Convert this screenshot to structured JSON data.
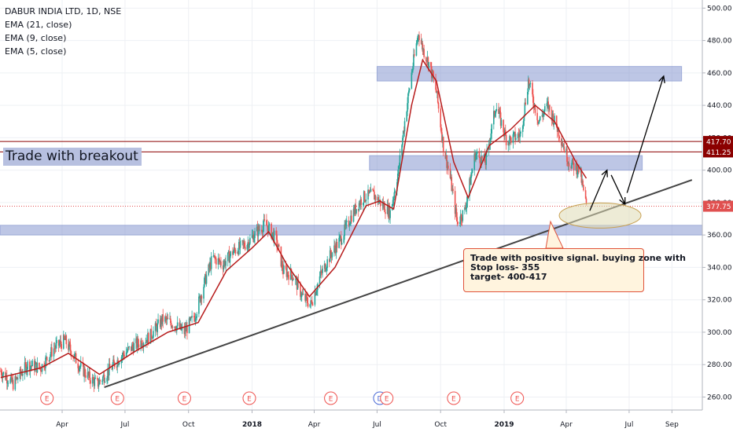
{
  "chart_data": {
    "type": "candlestick",
    "title": "DABUR INDIA LTD, 1D, NSE",
    "indicators": [
      "EMA (21, close)",
      "EMA (9, close)",
      "EMA (5, close)"
    ],
    "y_ticks": [
      500,
      480,
      460,
      440,
      420,
      400,
      380,
      360,
      340,
      320,
      300,
      280,
      260
    ],
    "y_tick_labels": [
      "500.00",
      "480.00",
      "460.00",
      "440.00",
      "420.00",
      "400.00",
      "380.00",
      "360.00",
      "340.00",
      "320.00",
      "300.00",
      "280.00",
      "260.00"
    ],
    "ylim": [
      252,
      505
    ],
    "x_tick_labels": [
      "Apr",
      "Jul",
      "Oct",
      "2018",
      "Apr",
      "Jul",
      "Oct",
      "2019",
      "Apr",
      "Jul",
      "Sep"
    ],
    "x_tick_dates": [
      "2017-04-01",
      "2017-07-01",
      "2017-10-01",
      "2018-01-01",
      "2018-04-01",
      "2018-07-01",
      "2018-10-01",
      "2019-01-01",
      "2019-04-01",
      "2019-07-01",
      "2019-09-01"
    ],
    "xlim": [
      "2017-01-01",
      "2019-10-15"
    ],
    "close_path": [
      [
        "2017-01-02",
        276
      ],
      [
        "2017-01-20",
        268
      ],
      [
        "2017-02-10",
        280
      ],
      [
        "2017-03-01",
        278
      ],
      [
        "2017-03-20",
        290
      ],
      [
        "2017-04-05",
        295
      ],
      [
        "2017-04-25",
        280
      ],
      [
        "2017-05-10",
        272
      ],
      [
        "2017-05-22",
        268
      ],
      [
        "2017-06-05",
        275
      ],
      [
        "2017-06-25",
        285
      ],
      [
        "2017-07-15",
        292
      ],
      [
        "2017-08-05",
        297
      ],
      [
        "2017-08-25",
        308
      ],
      [
        "2017-09-10",
        305
      ],
      [
        "2017-09-25",
        300
      ],
      [
        "2017-10-10",
        310
      ],
      [
        "2017-10-25",
        332
      ],
      [
        "2017-11-05",
        346
      ],
      [
        "2017-11-20",
        342
      ],
      [
        "2017-12-05",
        350
      ],
      [
        "2017-12-25",
        355
      ],
      [
        "2018-01-10",
        363
      ],
      [
        "2018-01-20",
        367
      ],
      [
        "2018-02-05",
        357
      ],
      [
        "2018-02-15",
        338
      ],
      [
        "2018-03-01",
        335
      ],
      [
        "2018-03-15",
        322
      ],
      [
        "2018-03-27",
        317
      ],
      [
        "2018-04-10",
        335
      ],
      [
        "2018-04-25",
        348
      ],
      [
        "2018-05-10",
        358
      ],
      [
        "2018-05-25",
        372
      ],
      [
        "2018-06-10",
        383
      ],
      [
        "2018-06-25",
        385
      ],
      [
        "2018-07-10",
        378
      ],
      [
        "2018-07-20",
        374
      ],
      [
        "2018-08-01",
        400
      ],
      [
        "2018-08-10",
        430
      ],
      [
        "2018-08-20",
        460
      ],
      [
        "2018-08-30",
        485
      ],
      [
        "2018-09-05",
        475
      ],
      [
        "2018-09-15",
        465
      ],
      [
        "2018-09-25",
        448
      ],
      [
        "2018-10-05",
        415
      ],
      [
        "2018-10-15",
        395
      ],
      [
        "2018-10-25",
        368
      ],
      [
        "2018-11-05",
        375
      ],
      [
        "2018-11-20",
        410
      ],
      [
        "2018-12-05",
        405
      ],
      [
        "2018-12-20",
        440
      ],
      [
        "2019-01-05",
        418
      ],
      [
        "2019-01-25",
        422
      ],
      [
        "2019-02-05",
        455
      ],
      [
        "2019-02-20",
        430
      ],
      [
        "2019-03-05",
        440
      ],
      [
        "2019-03-20",
        425
      ],
      [
        "2019-04-05",
        405
      ],
      [
        "2019-04-20",
        400
      ],
      [
        "2019-04-30",
        378
      ]
    ],
    "ema_path": [
      [
        "2017-01-02",
        272
      ],
      [
        "2017-03-01",
        278
      ],
      [
        "2017-04-10",
        287
      ],
      [
        "2017-05-25",
        274
      ],
      [
        "2017-07-15",
        288
      ],
      [
        "2017-09-01",
        300
      ],
      [
        "2017-10-15",
        306
      ],
      [
        "2017-11-25",
        338
      ],
      [
        "2018-01-01",
        352
      ],
      [
        "2018-01-25",
        362
      ],
      [
        "2018-02-20",
        342
      ],
      [
        "2018-03-25",
        322
      ],
      [
        "2018-05-01",
        340
      ],
      [
        "2018-06-15",
        378
      ],
      [
        "2018-07-05",
        381
      ],
      [
        "2018-07-25",
        376
      ],
      [
        "2018-08-20",
        440
      ],
      [
        "2018-09-05",
        468
      ],
      [
        "2018-09-25",
        455
      ],
      [
        "2018-10-20",
        405
      ],
      [
        "2018-11-10",
        383
      ],
      [
        "2018-12-10",
        415
      ],
      [
        "2019-01-10",
        425
      ],
      [
        "2019-02-15",
        440
      ],
      [
        "2019-03-15",
        430
      ],
      [
        "2019-04-15",
        405
      ],
      [
        "2019-04-30",
        395
      ]
    ],
    "horizontal_lines": [
      {
        "value": 417.7,
        "label": "417.70"
      },
      {
        "value": 411.25,
        "label": "411.25"
      }
    ],
    "last_price": {
      "value": 377.75,
      "label": "377.75"
    },
    "zones": [
      {
        "from_date": "2018-07-01",
        "to_date": "2019-09-15",
        "low": 455,
        "high": 464
      },
      {
        "from_date": "2018-06-20",
        "to_date": "2019-07-20",
        "low": 400,
        "high": 409
      },
      {
        "from_date": "2017-01-01",
        "to_date": "2019-10-15",
        "low": 360,
        "high": 366
      }
    ],
    "trendline": {
      "from": [
        "2017-06-01",
        266
      ],
      "to": [
        "2019-09-30",
        394
      ]
    },
    "ellipse": {
      "date": "2019-05-20",
      "value": 372
    },
    "projection_arrows": [
      [
        [
          "2019-05-05",
          375
        ],
        [
          "2019-05-30",
          400
        ]
      ],
      [
        [
          "2019-06-05",
          397
        ],
        [
          "2019-06-25",
          379
        ]
      ],
      [
        [
          "2019-06-28",
          386
        ],
        [
          "2019-08-20",
          458
        ]
      ]
    ],
    "event_markers": [
      {
        "date": "2017-03-10",
        "label": "E"
      },
      {
        "date": "2017-06-20",
        "label": "E"
      },
      {
        "date": "2017-09-25",
        "label": "E"
      },
      {
        "date": "2017-12-28",
        "label": "E"
      },
      {
        "date": "2018-04-25",
        "label": "E"
      },
      {
        "date": "2018-07-05",
        "label": "D"
      },
      {
        "date": "2018-07-15",
        "label": "E"
      },
      {
        "date": "2018-10-20",
        "label": "E"
      },
      {
        "date": "2019-01-20",
        "label": "E"
      }
    ],
    "annotations": {
      "banner": "Trade with breakout",
      "callout_lines": [
        "Trade with positive signal. buying zone with",
        "Stop loss- 355",
        "target- 400-417"
      ]
    }
  },
  "colors": {
    "up": "#26a69a",
    "down": "#ef5350",
    "ema": "#b71c1c",
    "zone": "#7b8dcc",
    "hline": "#8b0000",
    "trend": "#444444",
    "marker": "#ef5350",
    "marker_div": "#4a6ad6",
    "last_price": "#e05050",
    "ellipse_fill": "#dedbb5",
    "ellipse_stroke": "#c8a050"
  }
}
